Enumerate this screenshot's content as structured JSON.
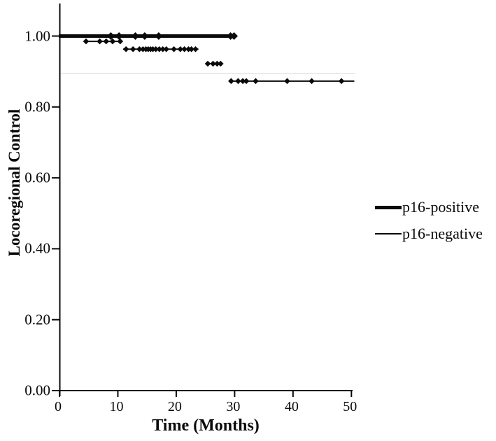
{
  "chart_data": {
    "type": "line",
    "subtype": "kaplan-meier-step-segments",
    "title": "",
    "xlabel": "Time (Months)",
    "ylabel": "Locoregional Control",
    "xlim": [
      0,
      50
    ],
    "ylim": [
      0.0,
      1.0
    ],
    "x_ticks": [
      0,
      10,
      20,
      30,
      40,
      50
    ],
    "y_ticks": [
      0.0,
      0.2,
      0.4,
      0.6,
      0.8,
      1.0
    ],
    "y_tick_labels": [
      "0.00",
      "0.20",
      "0.40",
      "0.60",
      "0.80",
      "1.00"
    ],
    "x_tick_labels": [
      "0",
      "10",
      "20",
      "30",
      "40",
      "50"
    ],
    "grid": "off",
    "faint_line_value": 0.894,
    "legend_position": "right-middle",
    "series": [
      {
        "name": "p16-positive",
        "style": "thick",
        "segments": [
          {
            "value": 1.0,
            "from": 0,
            "to": 30.1,
            "censor_marks": [
              8.8,
              10.2,
              13.0,
              14.6,
              17.0,
              29.3,
              29.9
            ]
          }
        ]
      },
      {
        "name": "p16-negative",
        "style": "thin",
        "segments": [
          {
            "value": 0.985,
            "from": 4.4,
            "to": 10.7,
            "censor_marks": [
              4.55,
              6.9,
              8.0,
              9.1,
              10.4
            ]
          },
          {
            "value": 0.963,
            "from": 10.9,
            "to": 23.8,
            "censor_marks": [
              11.4,
              12.6,
              13.7,
              14.3,
              14.8,
              15.2,
              15.6,
              16.0,
              16.5,
              17.1,
              17.7,
              18.3,
              19.6,
              20.7,
              21.4,
              22.1,
              22.6,
              23.3
            ]
          },
          {
            "value": 0.922,
            "from": 25.1,
            "to": 27.8,
            "censor_marks": [
              25.4,
              26.3,
              27.0,
              27.6
            ]
          },
          {
            "value": 0.873,
            "from": 29.0,
            "to": 50.5,
            "censor_marks": [
              29.4,
              30.6,
              31.4,
              32.0,
              33.6,
              39.0,
              43.2,
              48.3
            ]
          }
        ]
      }
    ]
  },
  "colors": {
    "line": "#0a0a0a",
    "faint_line": "#e4e4e4",
    "background": "#ffffff"
  }
}
